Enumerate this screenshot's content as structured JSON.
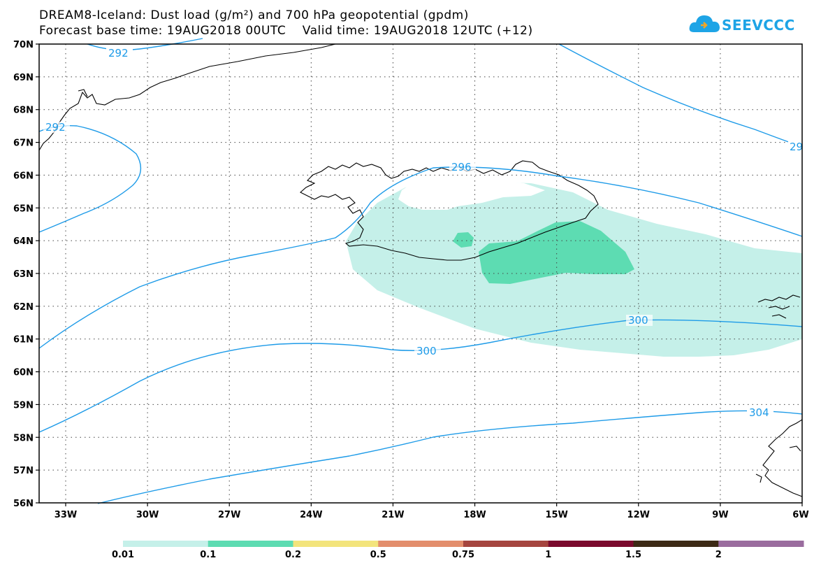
{
  "header": {
    "title_line1": "DREAM8-Iceland: Dust load (g/m²) and 700 hPa geopotential (gpdm)",
    "title_line2": "Forecast base time: 19AUG2018 00UTC    Valid time: 19AUG2018 12UTC (+12)"
  },
  "logo": {
    "text": "SEEVCCC",
    "icon": "cloud-icon"
  },
  "colors": {
    "contour": "#1e9be8",
    "dust_low": "#c5f0e9",
    "dust_mid": "#5ddcb2"
  },
  "map": {
    "lat_labels": [
      "70N",
      "69N",
      "68N",
      "67N",
      "66N",
      "65N",
      "64N",
      "63N",
      "62N",
      "61N",
      "60N",
      "59N",
      "58N",
      "57N",
      "56N"
    ],
    "lon_labels": [
      "33W",
      "30W",
      "27W",
      "24W",
      "21W",
      "18W",
      "15W",
      "12W",
      "9W",
      "6W"
    ],
    "contour_labels": [
      "292",
      "292",
      "296",
      "29",
      "300",
      "300",
      "304"
    ]
  },
  "legend": {
    "bins": [
      {
        "color": "#c5f0e9"
      },
      {
        "color": "#5ddcb2"
      },
      {
        "color": "#f3e47c"
      },
      {
        "color": "#e38e6c"
      },
      {
        "color": "#a5453f"
      },
      {
        "color": "#7b0a2d"
      },
      {
        "color": "#3d2a15"
      },
      {
        "color": "#9a6c9e"
      }
    ],
    "labels": [
      "0.01",
      "0.1",
      "0.2",
      "0.5",
      "0.75",
      "1",
      "1.5",
      "2"
    ]
  }
}
